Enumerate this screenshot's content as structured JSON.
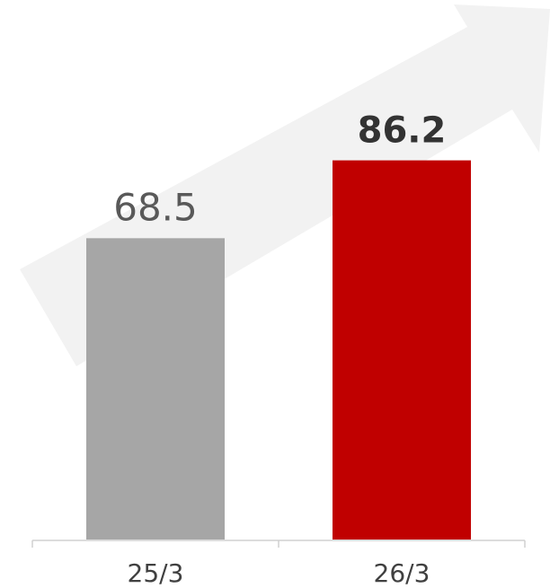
{
  "colors": {
    "bar_previous": "#a6a6a6",
    "bar_current": "#c00000",
    "background_arrow": "#f2f2f2",
    "axis": "#d0d0d0",
    "label_previous": "#595959",
    "label_current": "#333333",
    "tick_text": "#404040"
  },
  "chart_data": {
    "type": "bar",
    "categories": [
      "25/3",
      "26/3"
    ],
    "values": [
      68.5,
      86.2
    ],
    "value_labels": [
      "68.5",
      "86.2"
    ],
    "title": "",
    "xlabel": "",
    "ylabel": "",
    "ylim": [
      0,
      100
    ],
    "grid": false,
    "legend": "none",
    "decorations": [
      "upward-arrow-background"
    ]
  }
}
